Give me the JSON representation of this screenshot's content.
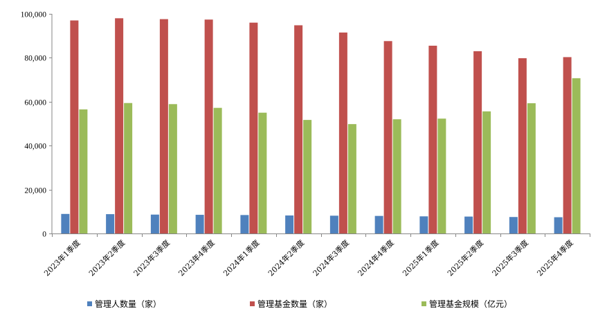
{
  "chart_data": {
    "type": "bar",
    "categories": [
      "2023年1季度",
      "2023年2季度",
      "2023年3季度",
      "2023年4季度",
      "2024年1季度",
      "2024年2季度",
      "2024年3季度",
      "2024年4季度",
      "2025年1季度",
      "2025年2季度",
      "2025年3季度",
      "2025年4季度"
    ],
    "series": [
      {
        "name": "管理人数量（家）",
        "color": "#4f81bd",
        "values": [
          8900,
          8800,
          8600,
          8500,
          8400,
          8200,
          8100,
          8000,
          7800,
          7700,
          7500,
          7400
        ]
      },
      {
        "name": "管理基金数量（家）",
        "color": "#c0504d",
        "values": [
          97000,
          98000,
          97600,
          97400,
          96000,
          94800,
          91500,
          87600,
          85500,
          83000,
          79800,
          80300
        ]
      },
      {
        "name": "管理基金规模（亿元）",
        "color": "#9bbb59",
        "values": [
          56500,
          59400,
          58900,
          57200,
          55000,
          51700,
          49800,
          52000,
          52300,
          55600,
          59300,
          70700
        ]
      }
    ],
    "ylim": [
      0,
      100000
    ],
    "yticks": [
      "0",
      "20,000",
      "40,000",
      "60,000",
      "80,000",
      "100,000"
    ],
    "ytick_values": [
      0,
      20000,
      40000,
      60000,
      80000,
      100000
    ],
    "grid": false,
    "legend_position": "bottom"
  }
}
